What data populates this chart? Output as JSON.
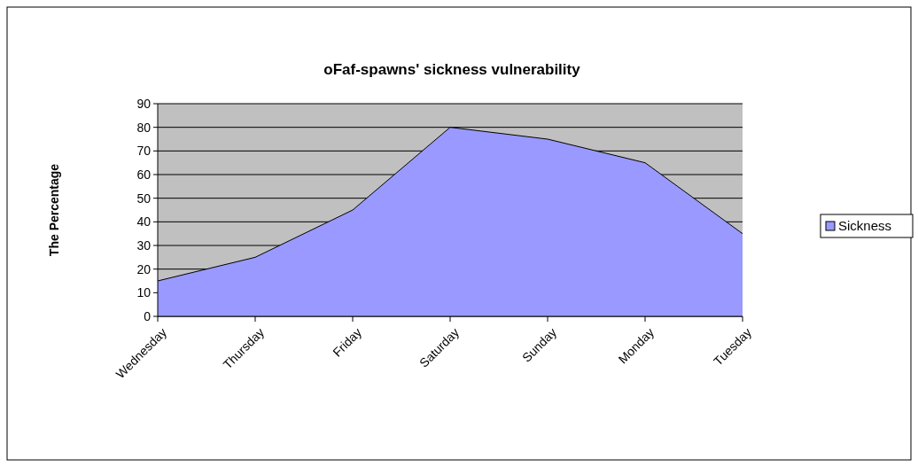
{
  "chart_data": {
    "type": "area",
    "title": "oFaf-spawns' sickness vulnerability",
    "ylabel": "The Percentage",
    "categories": [
      "Wednesday",
      "Thursday",
      "Friday",
      "Saturday",
      "Sunday",
      "Monday",
      "Tuesday"
    ],
    "series": [
      {
        "name": "Sickness",
        "color": "#9999ff",
        "values": [
          15,
          25,
          45,
          80,
          75,
          65,
          35
        ]
      }
    ],
    "ylim": [
      0,
      90
    ],
    "yticks": [
      0,
      10,
      20,
      30,
      40,
      50,
      60,
      70,
      80,
      90
    ],
    "grid": "y",
    "legend": "right"
  }
}
